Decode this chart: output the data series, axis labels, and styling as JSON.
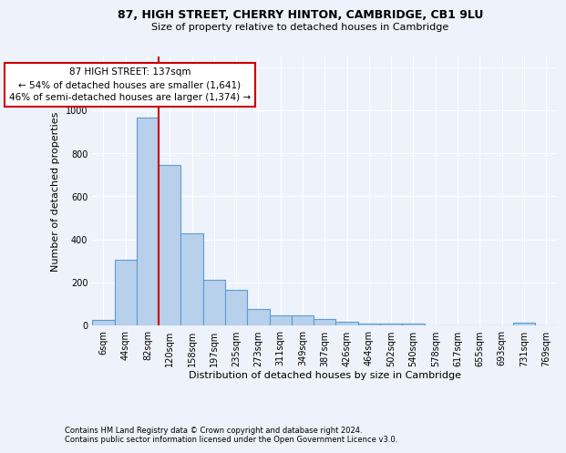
{
  "title_line1": "87, HIGH STREET, CHERRY HINTON, CAMBRIDGE, CB1 9LU",
  "title_line2": "Size of property relative to detached houses in Cambridge",
  "xlabel": "Distribution of detached houses by size in Cambridge",
  "ylabel": "Number of detached properties",
  "categories": [
    "6sqm",
    "44sqm",
    "82sqm",
    "120sqm",
    "158sqm",
    "197sqm",
    "235sqm",
    "273sqm",
    "311sqm",
    "349sqm",
    "387sqm",
    "426sqm",
    "464sqm",
    "502sqm",
    "540sqm",
    "578sqm",
    "617sqm",
    "655sqm",
    "693sqm",
    "731sqm",
    "769sqm"
  ],
  "values": [
    25,
    305,
    965,
    745,
    430,
    210,
    165,
    75,
    48,
    48,
    30,
    18,
    10,
    10,
    10,
    0,
    0,
    0,
    0,
    12,
    0
  ],
  "bar_color": "#b8d0eb",
  "bar_edge_color": "#5b9bd5",
  "vline_color": "#cc0000",
  "annotation_text": "87 HIGH STREET: 137sqm\n← 54% of detached houses are smaller (1,641)\n46% of semi-detached houses are larger (1,374) →",
  "annotation_box_facecolor": "#ffffff",
  "annotation_box_edgecolor": "#cc0000",
  "footer_line1": "Contains HM Land Registry data © Crown copyright and database right 2024.",
  "footer_line2": "Contains public sector information licensed under the Open Government Licence v3.0.",
  "background_color": "#eef2fb",
  "ylim": [
    0,
    1250
  ],
  "yticks": [
    0,
    200,
    400,
    600,
    800,
    1000,
    1200
  ],
  "vline_x": 2.5,
  "title1_fontsize": 9,
  "title2_fontsize": 8,
  "ylabel_fontsize": 8,
  "xlabel_fontsize": 8,
  "tick_fontsize": 7,
  "annotation_fontsize": 7.5,
  "footer_fontsize": 6
}
